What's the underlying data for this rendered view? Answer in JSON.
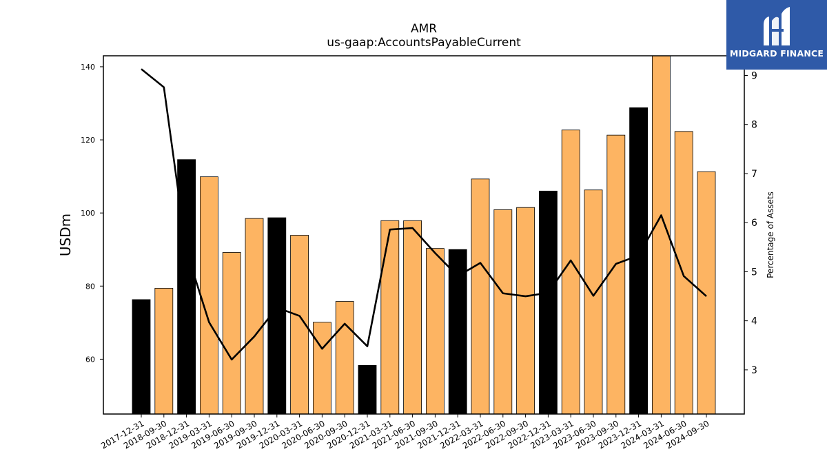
{
  "brand": {
    "name": "MIDGARD FINANCE",
    "bg_color": "#2f5aa8"
  },
  "chart_data": {
    "type": "bar",
    "title": "AMR",
    "subtitle": "us-gaap:AccountsPayableCurrent",
    "ylabel": "USDm",
    "y2label": "Percentage of Assets",
    "ylim": [
      45,
      143
    ],
    "y2lim": [
      2.1,
      9.4
    ],
    "yticks": [
      60,
      80,
      100,
      120,
      140
    ],
    "y2ticks": [
      3,
      4,
      5,
      6,
      7,
      8,
      9
    ],
    "categories": [
      "2017-12-31",
      "2018-09-30",
      "2018-12-31",
      "2019-03-31",
      "2019-06-30",
      "2019-09-30",
      "2019-12-31",
      "2020-03-31",
      "2020-06-30",
      "2020-09-30",
      "2020-12-31",
      "2021-03-31",
      "2021-06-30",
      "2021-09-30",
      "2021-12-31",
      "2022-03-31",
      "2022-06-30",
      "2022-09-30",
      "2022-12-31",
      "2023-03-31",
      "2023-06-30",
      "2023-09-30",
      "2023-12-31",
      "2024-03-31",
      "2024-06-30",
      "2024-09-30"
    ],
    "series": [
      {
        "type": "bar",
        "values": [
          76.3,
          79.4,
          114.6,
          109.9,
          89.2,
          98.5,
          98.7,
          93.9,
          70.1,
          75.8,
          58.3,
          97.9,
          97.9,
          90.3,
          90.0,
          109.3,
          100.9,
          101.5,
          106.0,
          122.7,
          106.3,
          121.3,
          128.8,
          143.0,
          122.3,
          111.3
        ],
        "colors": [
          "#000000",
          "#fdb462",
          "#000000",
          "#fdb462",
          "#fdb462",
          "#fdb462",
          "#000000",
          "#fdb462",
          "#fdb462",
          "#fdb462",
          "#000000",
          "#fdb462",
          "#fdb462",
          "#fdb462",
          "#000000",
          "#fdb462",
          "#fdb462",
          "#fdb462",
          "#000000",
          "#fdb462",
          "#fdb462",
          "#fdb462",
          "#000000",
          "#fdb462",
          "#fdb462",
          "#fdb462"
        ]
      },
      {
        "type": "line",
        "axis": "right",
        "color": "#000000",
        "values": [
          9.13,
          8.76,
          5.42,
          3.97,
          3.21,
          3.68,
          4.27,
          4.1,
          3.43,
          3.94,
          3.48,
          5.86,
          5.89,
          5.38,
          4.91,
          5.18,
          4.56,
          4.5,
          4.57,
          5.23,
          4.51,
          5.16,
          5.33,
          6.15,
          4.91,
          4.5
        ]
      }
    ],
    "legend": "none",
    "grid": false
  }
}
